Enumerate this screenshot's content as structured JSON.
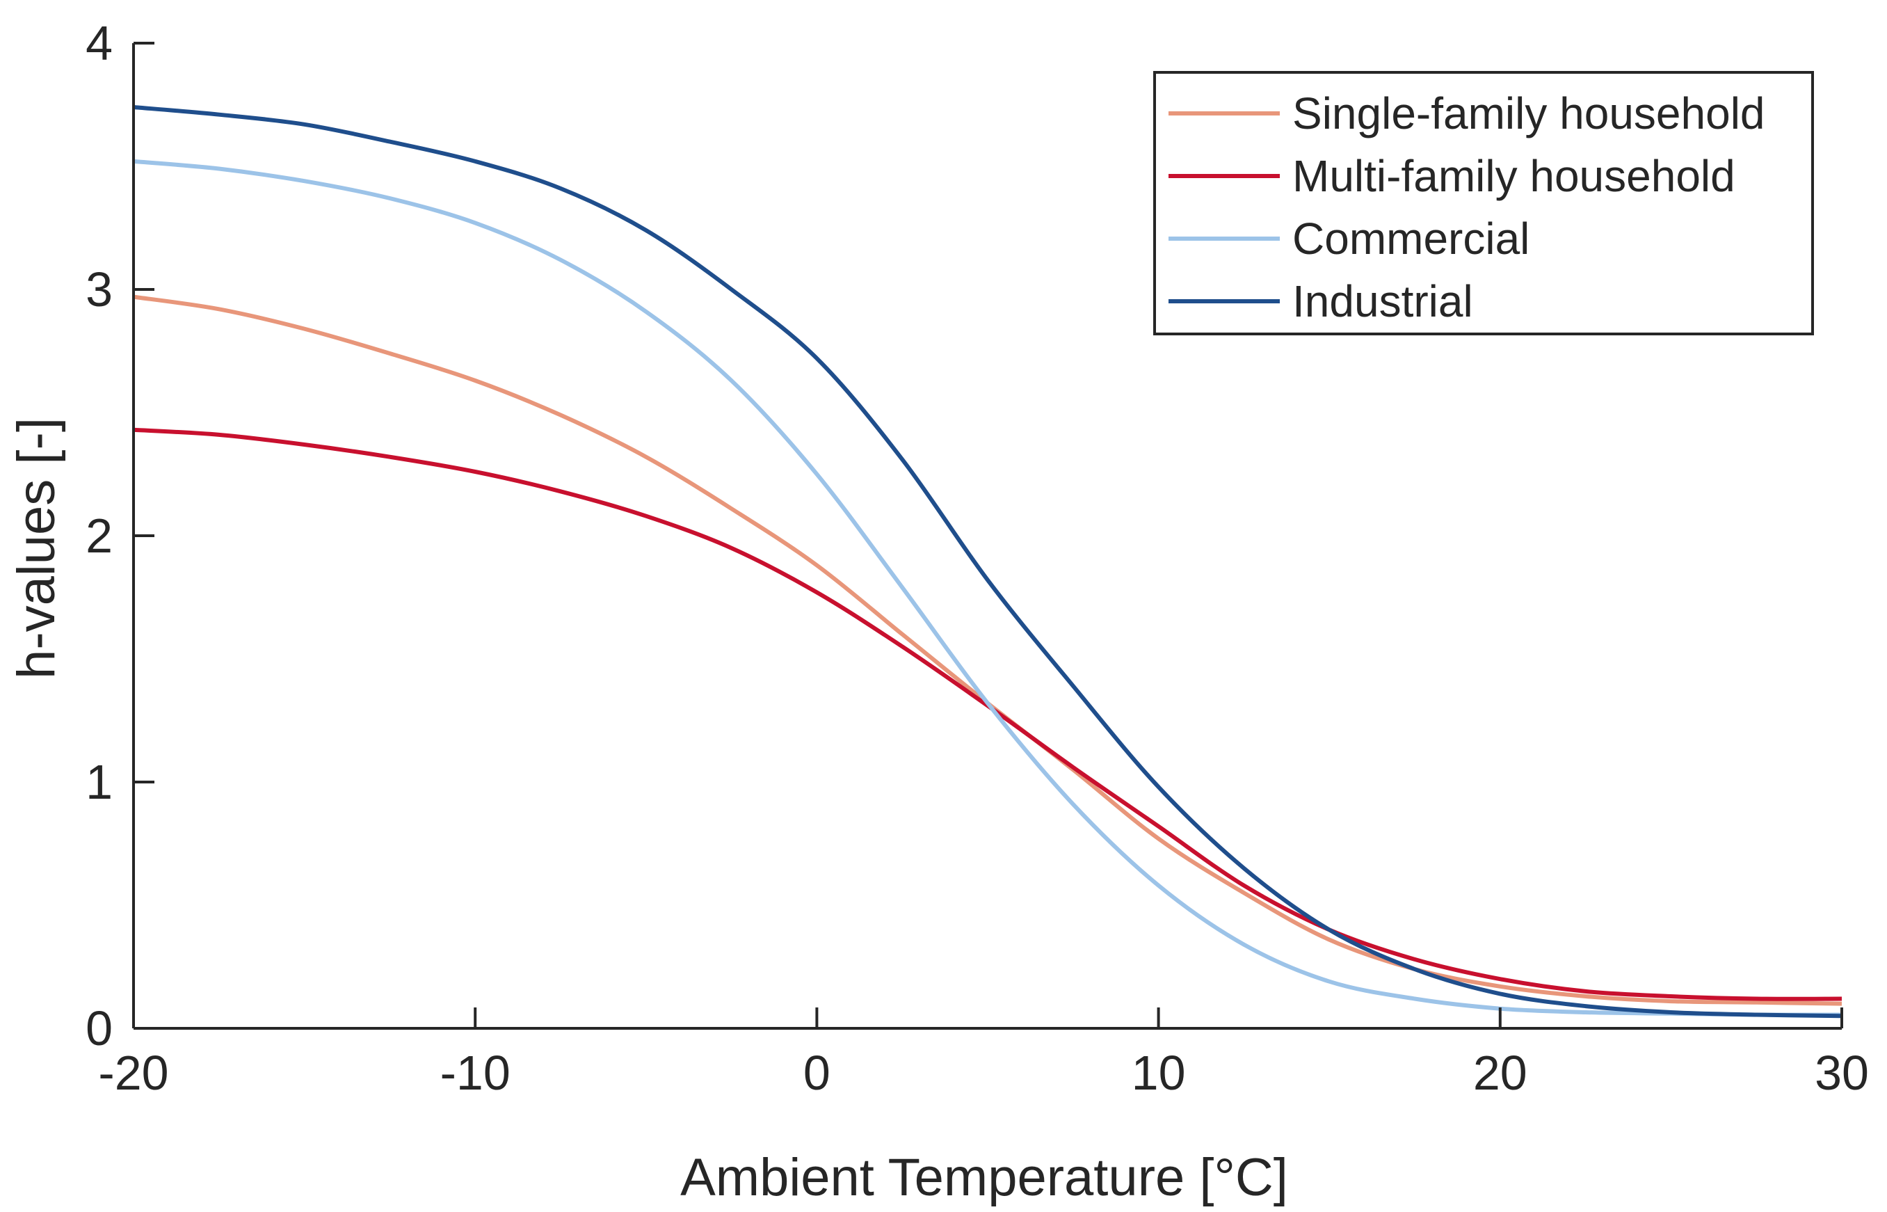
{
  "chart_data": {
    "type": "line",
    "title": "",
    "xlabel": "Ambient Temperature [°C]",
    "ylabel": "h-values [-]",
    "xlim": [
      -20,
      30
    ],
    "ylim": [
      0,
      4
    ],
    "xticks": [
      -20,
      -10,
      0,
      10,
      20,
      30
    ],
    "yticks": [
      0,
      1,
      2,
      3,
      4
    ],
    "x_tick_labels": [
      "-20",
      "-10",
      "0",
      "10",
      "20",
      "30"
    ],
    "y_tick_labels": [
      "0",
      "1",
      "2",
      "3",
      "4"
    ],
    "grid": false,
    "legend_position": "top-right",
    "x": [
      -20,
      -17.5,
      -15,
      -12.5,
      -10,
      -7.5,
      -5,
      -2.5,
      0,
      2.5,
      5,
      7.5,
      10,
      12.5,
      15,
      17.5,
      20,
      22.5,
      25,
      27.5,
      30
    ],
    "series": [
      {
        "name": "Single-family household",
        "color": "#e8967a",
        "values": [
          2.97,
          2.92,
          2.84,
          2.74,
          2.63,
          2.49,
          2.32,
          2.11,
          1.88,
          1.6,
          1.32,
          1.05,
          0.77,
          0.55,
          0.36,
          0.24,
          0.17,
          0.13,
          0.11,
          0.105,
          0.1
        ]
      },
      {
        "name": "Multi-family household",
        "color": "#c8102e",
        "values": [
          2.43,
          2.41,
          2.37,
          2.32,
          2.26,
          2.18,
          2.08,
          1.95,
          1.77,
          1.55,
          1.31,
          1.06,
          0.82,
          0.58,
          0.4,
          0.28,
          0.2,
          0.15,
          0.13,
          0.12,
          0.12
        ]
      },
      {
        "name": "Commercial",
        "color": "#9cc3e8",
        "values": [
          3.52,
          3.49,
          3.44,
          3.37,
          3.27,
          3.12,
          2.91,
          2.63,
          2.25,
          1.79,
          1.32,
          0.91,
          0.58,
          0.34,
          0.19,
          0.12,
          0.08,
          0.065,
          0.06,
          0.055,
          0.055
        ]
      },
      {
        "name": "Industrial",
        "color": "#1f4e8c",
        "values": [
          3.74,
          3.71,
          3.67,
          3.6,
          3.52,
          3.41,
          3.24,
          3.0,
          2.72,
          2.31,
          1.82,
          1.39,
          0.98,
          0.65,
          0.4,
          0.24,
          0.14,
          0.09,
          0.065,
          0.055,
          0.05
        ]
      }
    ]
  }
}
